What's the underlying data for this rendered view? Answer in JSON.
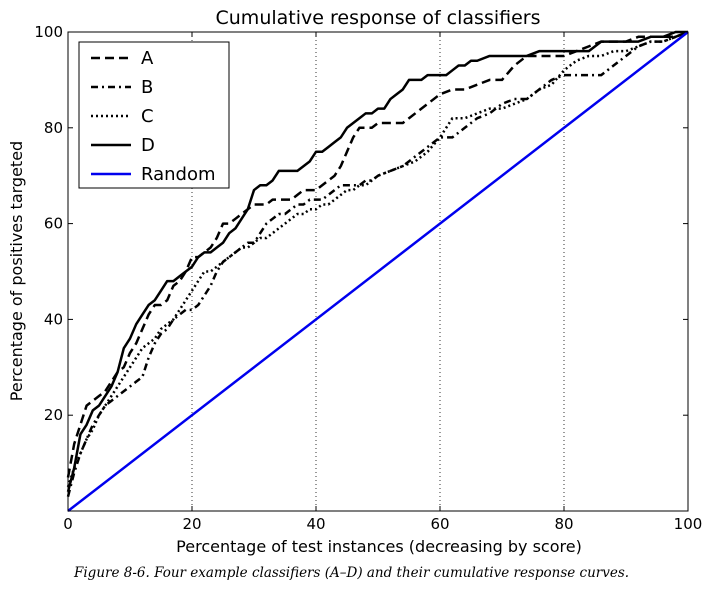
{
  "chart_data": {
    "type": "line",
    "title": "Cumulative response of classifiers",
    "xlabel": "Percentage of test instances (decreasing by score)",
    "ylabel": "Percentage of positives targeted",
    "xlim": [
      0,
      100
    ],
    "ylim": [
      0,
      100
    ],
    "xticks": [
      0,
      20,
      40,
      60,
      80,
      100
    ],
    "yticks": [
      20,
      40,
      60,
      80,
      100
    ],
    "vertical_gridlines": [
      20,
      40,
      60,
      80
    ],
    "legend_position": "top-left",
    "series": [
      {
        "name": "A",
        "style": "dashed",
        "color": "#000000",
        "x": [
          0,
          1,
          2,
          3,
          4,
          5,
          6,
          7,
          8,
          9,
          10,
          11,
          12,
          13,
          14,
          15,
          16,
          17,
          18,
          19,
          20,
          21,
          22,
          23,
          24,
          25,
          26,
          27,
          28,
          29,
          30,
          31,
          32,
          33,
          34,
          35,
          36,
          37,
          38,
          39,
          40,
          41,
          42,
          43,
          44,
          45,
          46,
          47,
          48,
          49,
          50,
          51,
          52,
          53,
          54,
          55,
          56,
          57,
          58,
          59,
          60,
          62,
          64,
          66,
          68,
          70,
          72,
          74,
          76,
          78,
          80,
          82,
          84,
          86,
          88,
          90,
          92,
          94,
          96,
          98,
          100
        ],
        "y": [
          7,
          14,
          18,
          22,
          23,
          24,
          25,
          27,
          29,
          30,
          33,
          35,
          38,
          41,
          43,
          43,
          44,
          47,
          48,
          50,
          53,
          53,
          54,
          55,
          57,
          60,
          60,
          61,
          62,
          63,
          64,
          64,
          64,
          65,
          65,
          65,
          65,
          66,
          67,
          67,
          67,
          68,
          69,
          70,
          72,
          75,
          78,
          80,
          80,
          80,
          81,
          81,
          81,
          81,
          81,
          82,
          83,
          84,
          85,
          86,
          87,
          88,
          88,
          89,
          90,
          90,
          93,
          95,
          95,
          95,
          95,
          96,
          97,
          98,
          98,
          98,
          99,
          99,
          99,
          99,
          100
        ]
      },
      {
        "name": "B",
        "style": "dash-dot",
        "color": "#000000",
        "x": [
          0,
          1,
          2,
          3,
          4,
          5,
          6,
          7,
          8,
          9,
          10,
          11,
          12,
          13,
          14,
          15,
          16,
          17,
          18,
          19,
          20,
          21,
          22,
          23,
          24,
          25,
          26,
          27,
          28,
          29,
          30,
          31,
          32,
          33,
          34,
          35,
          36,
          37,
          38,
          39,
          40,
          41,
          42,
          43,
          44,
          45,
          46,
          47,
          48,
          49,
          50,
          52,
          54,
          56,
          58,
          60,
          62,
          64,
          66,
          68,
          70,
          72,
          74,
          76,
          78,
          80,
          82,
          84,
          86,
          88,
          90,
          92,
          94,
          96,
          98,
          100
        ],
        "y": [
          3,
          8,
          12,
          15,
          18,
          20,
          22,
          23,
          24,
          25,
          26,
          27,
          28,
          32,
          35,
          37,
          38,
          40,
          41,
          42,
          42,
          43,
          45,
          47,
          50,
          52,
          53,
          54,
          55,
          56,
          56,
          58,
          60,
          61,
          62,
          62,
          63,
          64,
          64,
          65,
          65,
          65,
          66,
          67,
          68,
          68,
          68,
          68,
          69,
          69,
          70,
          71,
          72,
          74,
          76,
          78,
          78,
          80,
          82,
          83,
          85,
          86,
          86,
          88,
          90,
          91,
          91,
          91,
          91,
          93,
          95,
          97,
          98,
          98,
          99,
          100
        ]
      },
      {
        "name": "C",
        "style": "dotted",
        "color": "#000000",
        "x": [
          0,
          1,
          2,
          3,
          4,
          5,
          6,
          7,
          8,
          9,
          10,
          11,
          12,
          13,
          14,
          15,
          16,
          17,
          18,
          19,
          20,
          21,
          22,
          23,
          24,
          25,
          26,
          27,
          28,
          29,
          30,
          31,
          32,
          33,
          34,
          35,
          36,
          37,
          38,
          39,
          40,
          41,
          42,
          43,
          44,
          45,
          46,
          47,
          48,
          49,
          50,
          52,
          54,
          56,
          58,
          60,
          62,
          64,
          66,
          68,
          70,
          72,
          74,
          76,
          78,
          80,
          82,
          84,
          86,
          88,
          90,
          92,
          94,
          96,
          98,
          100
        ],
        "y": [
          5,
          9,
          12,
          15,
          17,
          20,
          22,
          24,
          26,
          28,
          30,
          32,
          34,
          35,
          36,
          38,
          39,
          40,
          42,
          44,
          46,
          48,
          50,
          50,
          51,
          52,
          53,
          54,
          55,
          55,
          56,
          57,
          57,
          58,
          59,
          60,
          61,
          62,
          62,
          63,
          63,
          64,
          64,
          65,
          66,
          67,
          67,
          68,
          68,
          69,
          70,
          71,
          72,
          73,
          75,
          78,
          82,
          82,
          83,
          84,
          84,
          85,
          86,
          88,
          89,
          92,
          94,
          95,
          95,
          96,
          96,
          97,
          98,
          98,
          99,
          100
        ]
      },
      {
        "name": "D",
        "style": "solid",
        "color": "#000000",
        "x": [
          0,
          1,
          2,
          3,
          4,
          5,
          6,
          7,
          8,
          9,
          10,
          11,
          12,
          13,
          14,
          15,
          16,
          17,
          18,
          19,
          20,
          21,
          22,
          23,
          24,
          25,
          26,
          27,
          28,
          29,
          30,
          31,
          32,
          33,
          34,
          35,
          36,
          37,
          38,
          39,
          40,
          41,
          42,
          43,
          44,
          45,
          46,
          47,
          48,
          49,
          50,
          51,
          52,
          53,
          54,
          55,
          56,
          57,
          58,
          59,
          60,
          61,
          62,
          63,
          64,
          65,
          66,
          68,
          70,
          72,
          74,
          76,
          78,
          80,
          82,
          84,
          86,
          88,
          90,
          92,
          94,
          96,
          98,
          100
        ],
        "y": [
          4,
          9,
          16,
          18,
          21,
          22,
          24,
          26,
          29,
          34,
          36,
          39,
          41,
          43,
          44,
          46,
          48,
          48,
          49,
          50,
          51,
          53,
          54,
          54,
          55,
          56,
          58,
          59,
          61,
          63,
          67,
          68,
          68,
          69,
          71,
          71,
          71,
          71,
          72,
          73,
          75,
          75,
          76,
          77,
          78,
          80,
          81,
          82,
          83,
          83,
          84,
          84,
          86,
          87,
          88,
          90,
          90,
          90,
          91,
          91,
          91,
          91,
          92,
          93,
          93,
          94,
          94,
          95,
          95,
          95,
          95,
          96,
          96,
          96,
          96,
          96,
          98,
          98,
          98,
          98,
          99,
          99,
          100,
          100
        ]
      },
      {
        "name": "Random",
        "style": "solid",
        "color": "#0000ee",
        "x": [
          0,
          100
        ],
        "y": [
          0,
          100
        ]
      }
    ]
  },
  "caption": "Figure 8-6. Four example classifiers (A–D) and their cumulative response curves."
}
